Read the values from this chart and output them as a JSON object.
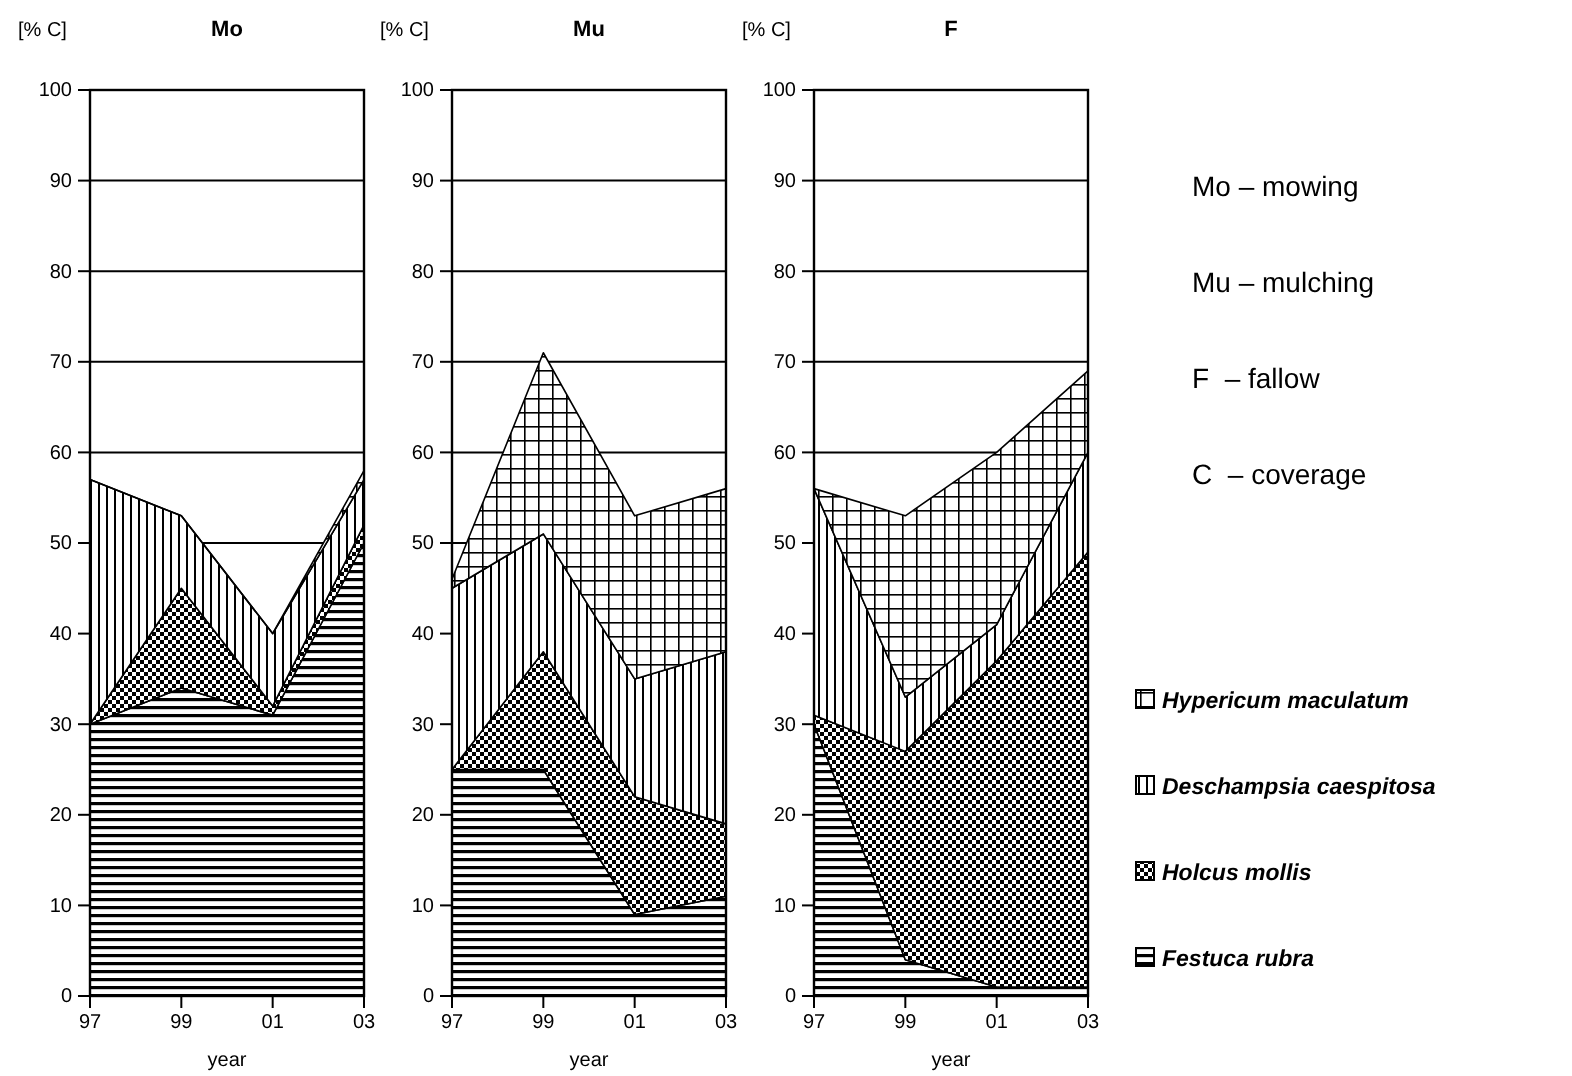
{
  "chart_data": [
    {
      "type": "area",
      "stacked": true,
      "title": "Mo",
      "ylabel": "[% C]",
      "xlabel": "year",
      "categories": [
        "97",
        "99",
        "01",
        "03"
      ],
      "ylim": [
        0,
        100
      ],
      "yticks": [
        0,
        10,
        20,
        30,
        40,
        50,
        60,
        70,
        80,
        90,
        100
      ],
      "grid": "y",
      "series": [
        {
          "color": "#000000",
          "values": [
            30,
            34,
            31,
            50
          ]
        },
        {
          "color": "#000000",
          "values": [
            0,
            11,
            1,
            2
          ]
        },
        {
          "color": "#000000",
          "values": [
            27,
            8,
            8,
            5
          ]
        },
        {
          "color": "#000000",
          "values": [
            0,
            0,
            0,
            1
          ]
        }
      ]
    },
    {
      "type": "area",
      "stacked": true,
      "title": "Mu",
      "ylabel": "[% C]",
      "xlabel": "year",
      "categories": [
        "97",
        "99",
        "01",
        "03"
      ],
      "ylim": [
        0,
        100
      ],
      "yticks": [
        0,
        10,
        20,
        30,
        40,
        50,
        60,
        70,
        80,
        90,
        100
      ],
      "grid": "y",
      "series": [
        {
          "color": "#000000",
          "values": [
            25,
            25,
            9,
            11
          ]
        },
        {
          "color": "#000000",
          "values": [
            0,
            13,
            13,
            8
          ]
        },
        {
          "color": "#000000",
          "values": [
            20,
            13,
            13,
            19
          ]
        },
        {
          "color": "#000000",
          "values": [
            1,
            20,
            18,
            18
          ]
        }
      ]
    },
    {
      "type": "area",
      "stacked": true,
      "title": "F",
      "ylabel": "[% C]",
      "xlabel": "year",
      "categories": [
        "97",
        "99",
        "01",
        "03"
      ],
      "ylim": [
        0,
        100
      ],
      "yticks": [
        0,
        10,
        20,
        30,
        40,
        50,
        60,
        70,
        80,
        90,
        100
      ],
      "grid": "y",
      "legend": "right",
      "annotations": [
        "Mo – mowing",
        "Mu – mulching",
        "F  – fallow",
        "C  – coverage"
      ],
      "series": [
        {
          "name": "Festuca rubra",
          "color": "#000000",
          "values": [
            30,
            4,
            1,
            1
          ]
        },
        {
          "name": "Holcus mollis",
          "color": "#000000",
          "values": [
            1,
            23,
            36,
            48
          ]
        },
        {
          "name": "Deschampsia caespitosa",
          "color": "#000000",
          "values": [
            25,
            6,
            4,
            11
          ]
        },
        {
          "name": "Hypericum maculatum",
          "color": "#000000",
          "values": [
            0,
            20,
            19,
            9
          ]
        }
      ]
    }
  ]
}
